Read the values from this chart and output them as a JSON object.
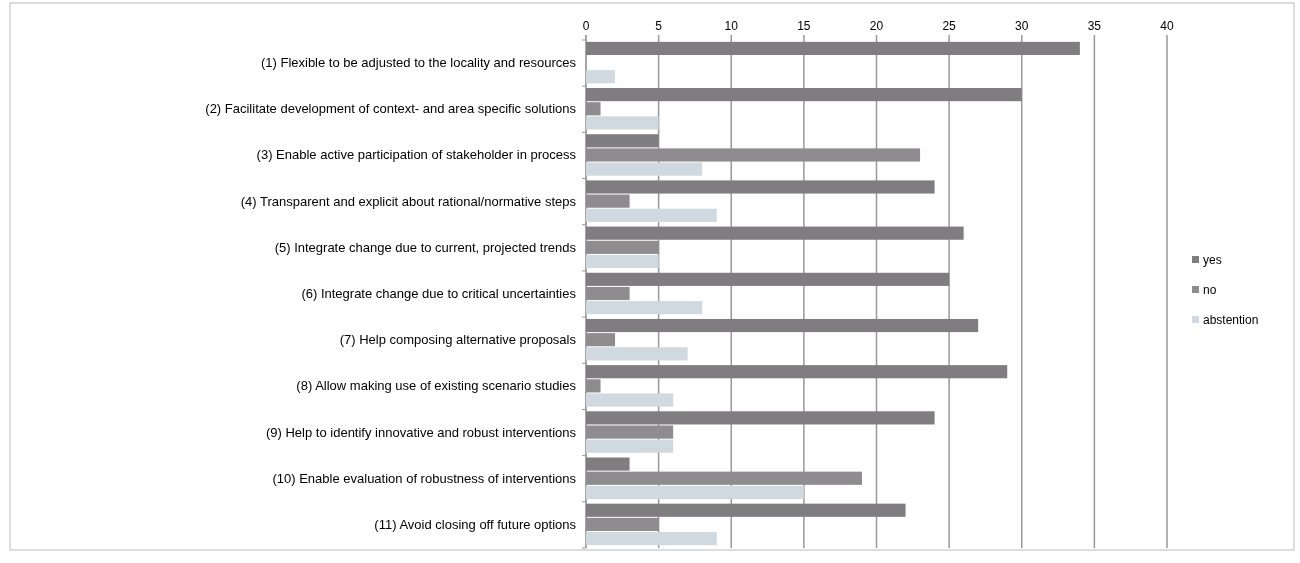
{
  "chart_data": {
    "type": "bar",
    "orientation": "horizontal",
    "categories": [
      "(1) Flexible to be adjusted to the locality and resources",
      "(2) Facilitate development of context- and area specific solutions",
      "(3) Enable active participation of stakeholder in process ",
      "(4) Transparent and explicit about rational/normative steps",
      "(5) Integrate change due to current, projected trends",
      "(6) Integrate change due to critical uncertainties",
      "(7) Help composing alternative proposals",
      "(8) Allow making use of existing scenario studies",
      "(9) Help to identify innovative and robust interventions",
      "(10) Enable evaluation of robustness of interventions",
      "(11) Avoid closing off future options"
    ],
    "series": [
      {
        "name": "yes",
        "color": "#7f7d80",
        "values": [
          34,
          30,
          5,
          24,
          26,
          25,
          27,
          29,
          24,
          3,
          22
        ]
      },
      {
        "name": "no",
        "color": "#8e8c8e",
        "values": [
          0,
          1,
          23,
          3,
          5,
          3,
          2,
          1,
          6,
          19,
          5
        ]
      },
      {
        "name": "abstention",
        "color": "#d0d8e0",
        "values": [
          2,
          5,
          8,
          9,
          5,
          8,
          7,
          6,
          6,
          15,
          9
        ]
      }
    ],
    "xlim": [
      0,
      40
    ],
    "xticks": [
      0,
      5,
      10,
      15,
      20,
      25,
      30,
      35,
      40
    ],
    "grid": "x",
    "legend": "right"
  }
}
